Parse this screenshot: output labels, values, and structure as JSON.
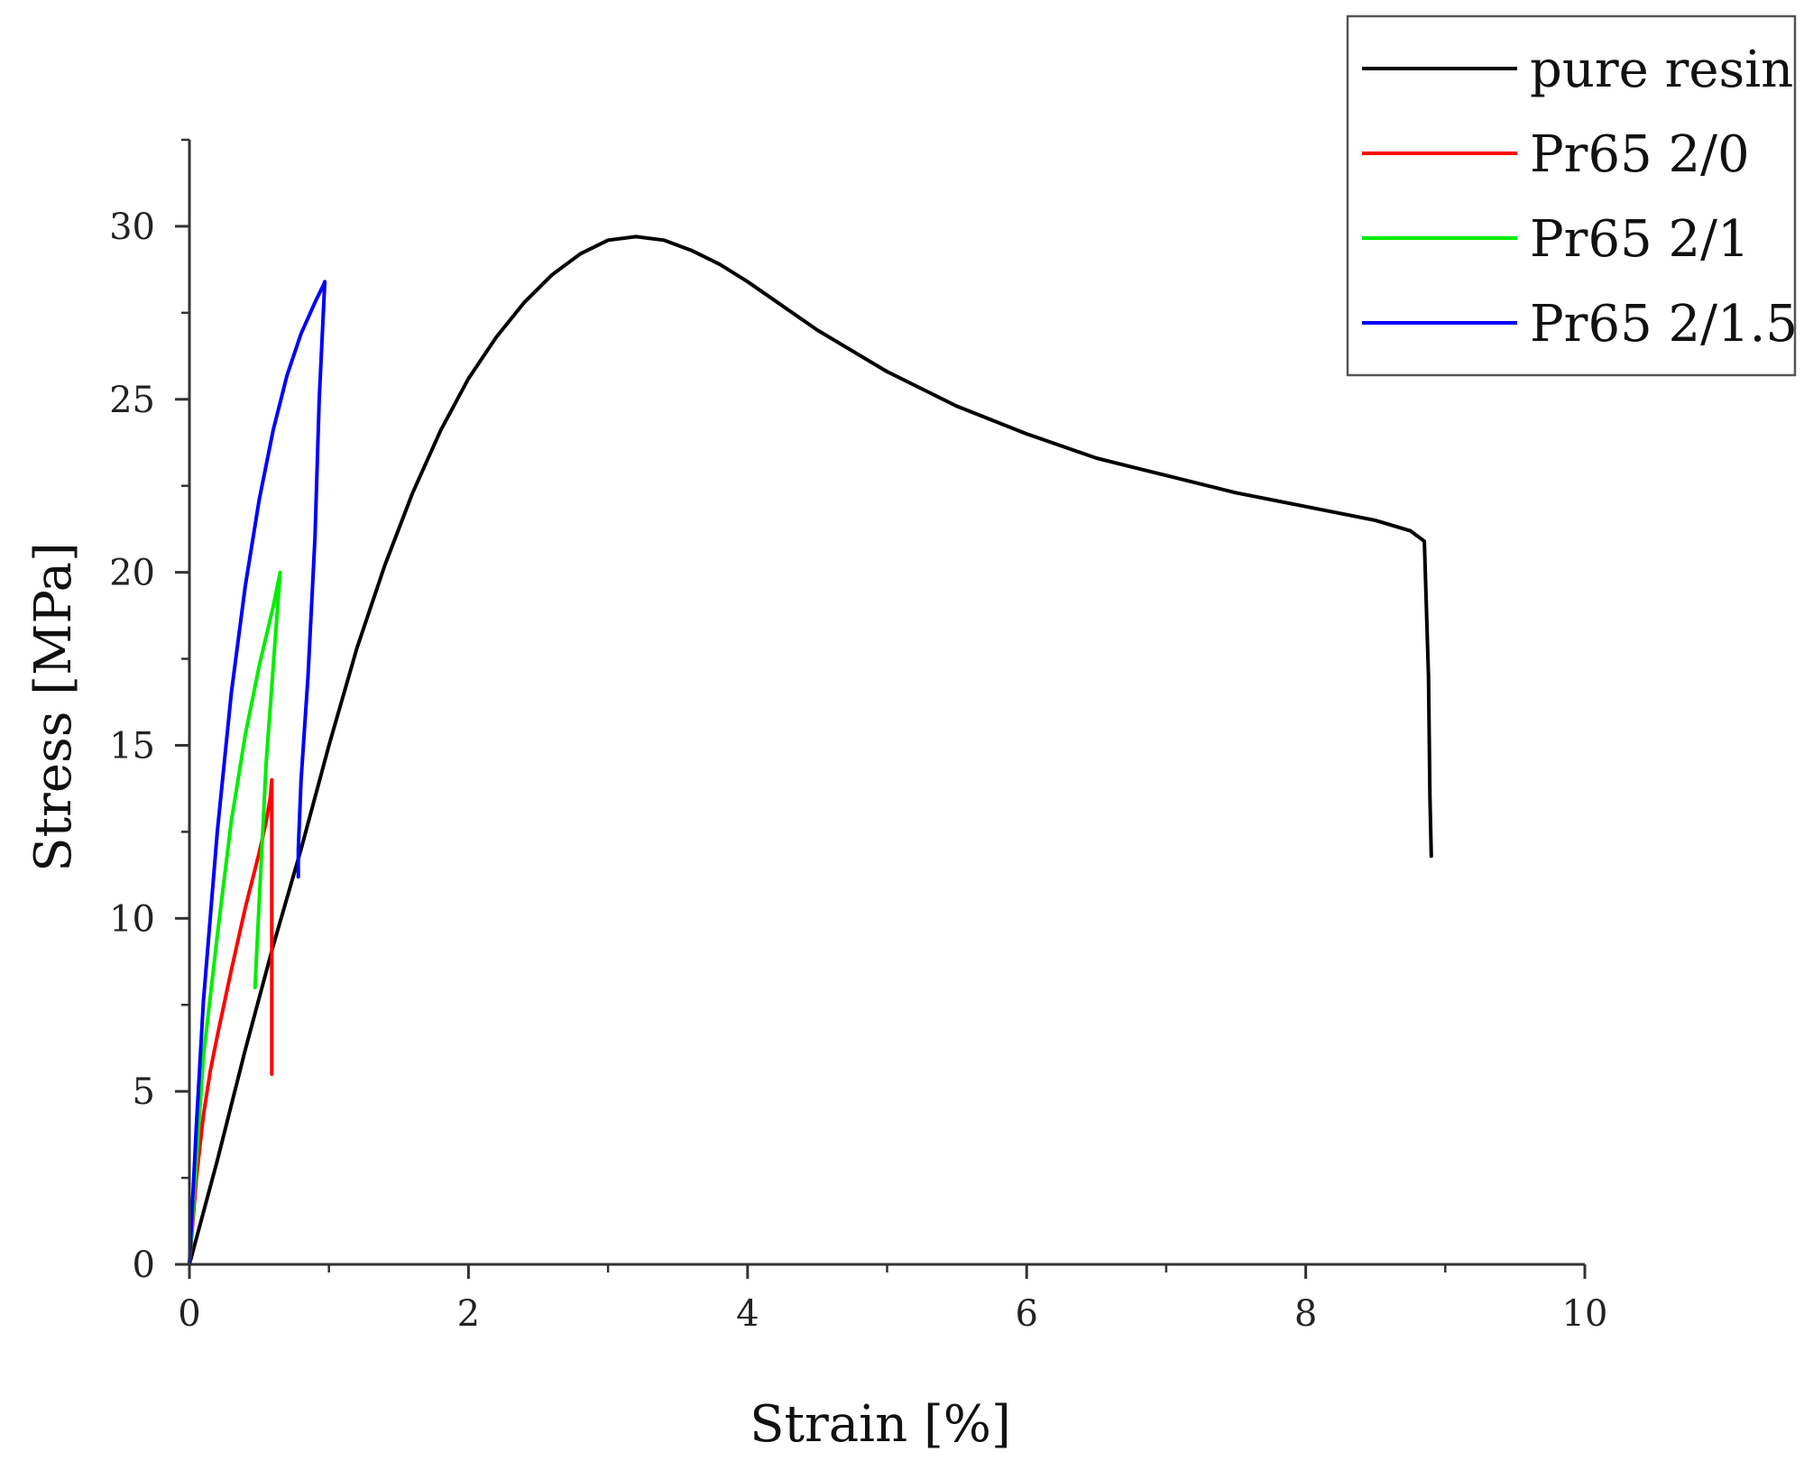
{
  "chart_data": {
    "type": "line",
    "title": "",
    "xlabel": "Strain [%]",
    "ylabel": "Stress [MPa]",
    "xlim": [
      0,
      10
    ],
    "ylim": [
      0,
      32.5
    ],
    "xticks": [
      0,
      2,
      4,
      6,
      8,
      10
    ],
    "xtick_labels": [
      "0",
      "2",
      "4",
      "6",
      "8",
      "10"
    ],
    "yticks": [
      0,
      5,
      10,
      15,
      20,
      25,
      30
    ],
    "ytick_labels": [
      "0",
      "5",
      "10",
      "15",
      "20",
      "25",
      "30"
    ],
    "grid": false,
    "legend_position": "top-right",
    "series": [
      {
        "name": "pure resin",
        "color": "#000000",
        "x": [
          0,
          0.2,
          0.4,
          0.6,
          0.8,
          1.0,
          1.2,
          1.4,
          1.6,
          1.8,
          2.0,
          2.2,
          2.4,
          2.6,
          2.8,
          3.0,
          3.2,
          3.4,
          3.6,
          3.8,
          4.0,
          4.5,
          5.0,
          5.5,
          6.0,
          6.5,
          7.0,
          7.5,
          8.0,
          8.5,
          8.75,
          8.85,
          8.88,
          8.89,
          8.9
        ],
        "y": [
          0,
          3.0,
          6.2,
          9.2,
          12.0,
          15.0,
          17.8,
          20.2,
          22.3,
          24.1,
          25.6,
          26.8,
          27.8,
          28.6,
          29.2,
          29.6,
          29.7,
          29.6,
          29.3,
          28.9,
          28.4,
          27.0,
          25.8,
          24.8,
          24.0,
          23.3,
          22.8,
          22.3,
          21.9,
          21.5,
          21.2,
          20.9,
          17.0,
          13.5,
          11.8
        ]
      },
      {
        "name": "Pr65 2/0",
        "color": "#ff0000",
        "x": [
          0,
          0.05,
          0.1,
          0.15,
          0.2,
          0.3,
          0.4,
          0.5,
          0.55,
          0.58,
          0.59,
          0.59,
          0.59
        ],
        "y": [
          0,
          2.5,
          4.3,
          5.6,
          6.6,
          8.5,
          10.3,
          11.9,
          12.8,
          13.5,
          14.0,
          9.0,
          5.5
        ]
      },
      {
        "name": "Pr65 2/1",
        "color": "#00ee00",
        "x": [
          0,
          0.1,
          0.2,
          0.3,
          0.4,
          0.5,
          0.6,
          0.65,
          0.55,
          0.5,
          0.47
        ],
        "y": [
          0,
          6.0,
          9.5,
          12.8,
          15.3,
          17.3,
          19.0,
          20.0,
          14.5,
          10.5,
          8.0
        ]
      },
      {
        "name": "Pr65 2/1.5",
        "color": "#0000ff",
        "x": [
          0,
          0.05,
          0.1,
          0.2,
          0.3,
          0.4,
          0.5,
          0.6,
          0.7,
          0.8,
          0.9,
          0.96,
          0.97,
          0.93,
          0.9,
          0.85,
          0.8,
          0.78,
          0.78
        ],
        "y": [
          0,
          4.0,
          7.6,
          12.5,
          16.5,
          19.6,
          22.1,
          24.1,
          25.7,
          26.9,
          27.8,
          28.3,
          28.4,
          25.0,
          21.0,
          17.0,
          14.0,
          12.0,
          11.2
        ]
      }
    ]
  }
}
